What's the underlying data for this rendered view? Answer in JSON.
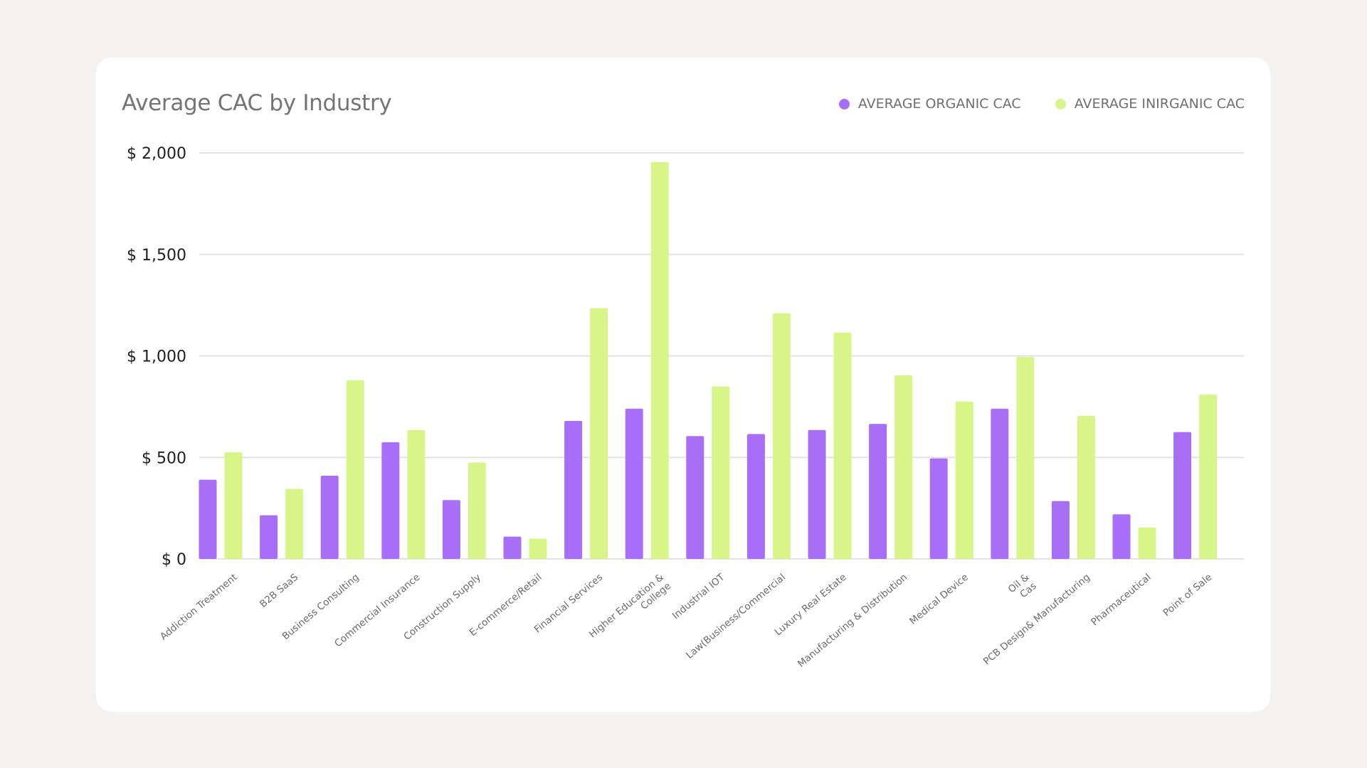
{
  "colors": {
    "organic": "#a86ef5",
    "inorganic": "#d8f58a",
    "grid": "#e3e3e3",
    "axis_text": "#1e1e1e",
    "tick_text": "#6a6a6a"
  },
  "chart_data": {
    "type": "bar",
    "title": "Average CAC by Industry",
    "xlabel": "",
    "ylabel": "",
    "ylim": [
      0,
      2000
    ],
    "y_ticks": [
      {
        "value": 0,
        "label": "$ 0"
      },
      {
        "value": 500,
        "label": "$ 500"
      },
      {
        "value": 1000,
        "label": "$ 1,000"
      },
      {
        "value": 1500,
        "label": "$ 1,500"
      },
      {
        "value": 2000,
        "label": "$ 2,000"
      }
    ],
    "grid": true,
    "legend_position": "top-right",
    "categories": [
      [
        "Addiction Treatment"
      ],
      [
        "B2B SaaS"
      ],
      [
        "Business Consulting"
      ],
      [
        "Commercial Insurance"
      ],
      [
        "Construction Supply"
      ],
      [
        "E-commerce/Retail"
      ],
      [
        "Financial Services"
      ],
      [
        "Higher Education &",
        "College"
      ],
      [
        "Industrial IOT"
      ],
      [
        "Law(Business/Commercial"
      ],
      [
        "Luxury Real Estate"
      ],
      [
        "Manufacturing & Distribution"
      ],
      [
        "Medical Device"
      ],
      [
        "Oil &",
        "Cas"
      ],
      [
        "PCB Design& Manufacturing"
      ],
      [
        "Pharmaceutical"
      ],
      [
        "Point of Sale"
      ]
    ],
    "series": [
      {
        "name": "AVERAGE ORGANIC CAC",
        "values": [
          390,
          215,
          410,
          575,
          290,
          110,
          680,
          740,
          605,
          615,
          635,
          665,
          495,
          740,
          285,
          220,
          625
        ]
      },
      {
        "name": "AVERAGE INIRGANIC CAC",
        "values": [
          525,
          345,
          880,
          635,
          475,
          100,
          1235,
          1955,
          850,
          1210,
          1115,
          905,
          775,
          995,
          705,
          155,
          810
        ]
      }
    ]
  }
}
